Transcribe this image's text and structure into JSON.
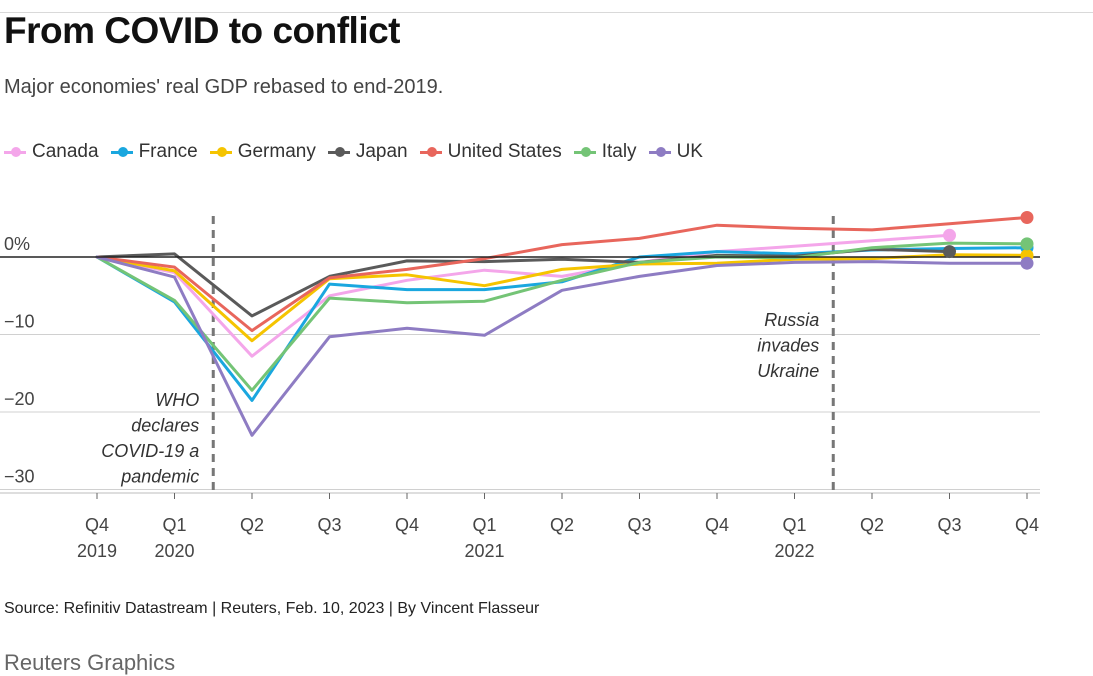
{
  "header": {
    "title": "From COVID to conflict",
    "subtitle": "Major economies' real GDP rebased to end-2019."
  },
  "footer": {
    "source": "Source: Refinitiv Datastream | Reuters, Feb. 10, 2023 | By Vincent Flasseur",
    "credit": "Reuters Graphics"
  },
  "chart_data": {
    "type": "line",
    "title": "From COVID to conflict",
    "subtitle": "Major economies' real GDP rebased to end-2019.",
    "x": [
      "Q4 2019",
      "Q1 2020",
      "Q2 2020",
      "Q3 2020",
      "Q4 2020",
      "Q1 2021",
      "Q2 2021",
      "Q3 2021",
      "Q4 2021",
      "Q1 2022",
      "Q2 2022",
      "Q3 2022",
      "Q4 2022"
    ],
    "x_tick_labels": [
      {
        "line1": "Q4",
        "line2": "2019"
      },
      {
        "line1": "Q1",
        "line2": "2020"
      },
      {
        "line1": "Q2",
        "line2": ""
      },
      {
        "line1": "Q3",
        "line2": ""
      },
      {
        "line1": "Q4",
        "line2": ""
      },
      {
        "line1": "Q1",
        "line2": "2021"
      },
      {
        "line1": "Q2",
        "line2": ""
      },
      {
        "line1": "Q3",
        "line2": ""
      },
      {
        "line1": "Q4",
        "line2": ""
      },
      {
        "line1": "Q1",
        "line2": "2022"
      },
      {
        "line1": "Q2",
        "line2": ""
      },
      {
        "line1": "Q3",
        "line2": ""
      },
      {
        "line1": "Q4",
        "line2": ""
      }
    ],
    "y_ticks": [
      {
        "value": 0,
        "label": "0%"
      },
      {
        "value": -10,
        "label": "−10"
      },
      {
        "value": -20,
        "label": "−20"
      },
      {
        "value": -30,
        "label": "−30"
      }
    ],
    "ylim": [
      -30,
      5
    ],
    "xlabel": "",
    "ylabel": "",
    "legend_position": "top-left",
    "series": [
      {
        "name": "Canada",
        "color": "#f4a6ea",
        "values": [
          0,
          -2.0,
          -12.8,
          -5.0,
          -3.0,
          -1.7,
          -2.5,
          -0.7,
          0.7,
          1.4,
          2.1,
          2.8,
          null
        ]
      },
      {
        "name": "France",
        "color": "#1aa7df",
        "values": [
          0,
          -5.8,
          -18.5,
          -3.5,
          -4.2,
          -4.2,
          -3.2,
          0,
          0.7,
          0.4,
          0.9,
          1.1,
          1.2
        ]
      },
      {
        "name": "Germany",
        "color": "#f5c400",
        "values": [
          0,
          -1.8,
          -10.8,
          -2.8,
          -2.3,
          -3.7,
          -1.6,
          -0.9,
          -0.8,
          -0.3,
          -0.2,
          0.3,
          0.2
        ]
      },
      {
        "name": "Japan",
        "color": "#5a5a5a",
        "values": [
          0,
          0.4,
          -7.6,
          -2.5,
          -0.5,
          -0.6,
          -0.3,
          -0.7,
          0.2,
          0.1,
          1.0,
          0.7,
          null
        ]
      },
      {
        "name": "United States",
        "color": "#e8665c",
        "values": [
          0,
          -1.3,
          -9.5,
          -2.7,
          -1.6,
          -0.2,
          1.6,
          2.4,
          4.1,
          3.7,
          3.5,
          4.3,
          5.1
        ]
      },
      {
        "name": "Italy",
        "color": "#74c476",
        "values": [
          0,
          -5.6,
          -17.2,
          -5.3,
          -5.9,
          -5.7,
          -3.0,
          -0.7,
          0,
          -0.1,
          1.2,
          1.8,
          1.7
        ]
      },
      {
        "name": "UK",
        "color": "#8e7cc3",
        "values": [
          0,
          -2.6,
          -23.0,
          -10.3,
          -9.2,
          -10.1,
          -4.3,
          -2.5,
          -1.1,
          -0.7,
          -0.6,
          -0.8,
          -0.8
        ]
      }
    ],
    "annotations": [
      {
        "text_lines": [
          "WHO",
          "declares",
          "COVID-19 a",
          "pandemic"
        ],
        "x_between": [
          "Q1 2020",
          "Q2 2020"
        ]
      },
      {
        "text_lines": [
          "Russia",
          "invades",
          "Ukraine"
        ],
        "x_between": [
          "Q1 2022",
          "Q2 2022"
        ]
      }
    ],
    "grid": true
  }
}
